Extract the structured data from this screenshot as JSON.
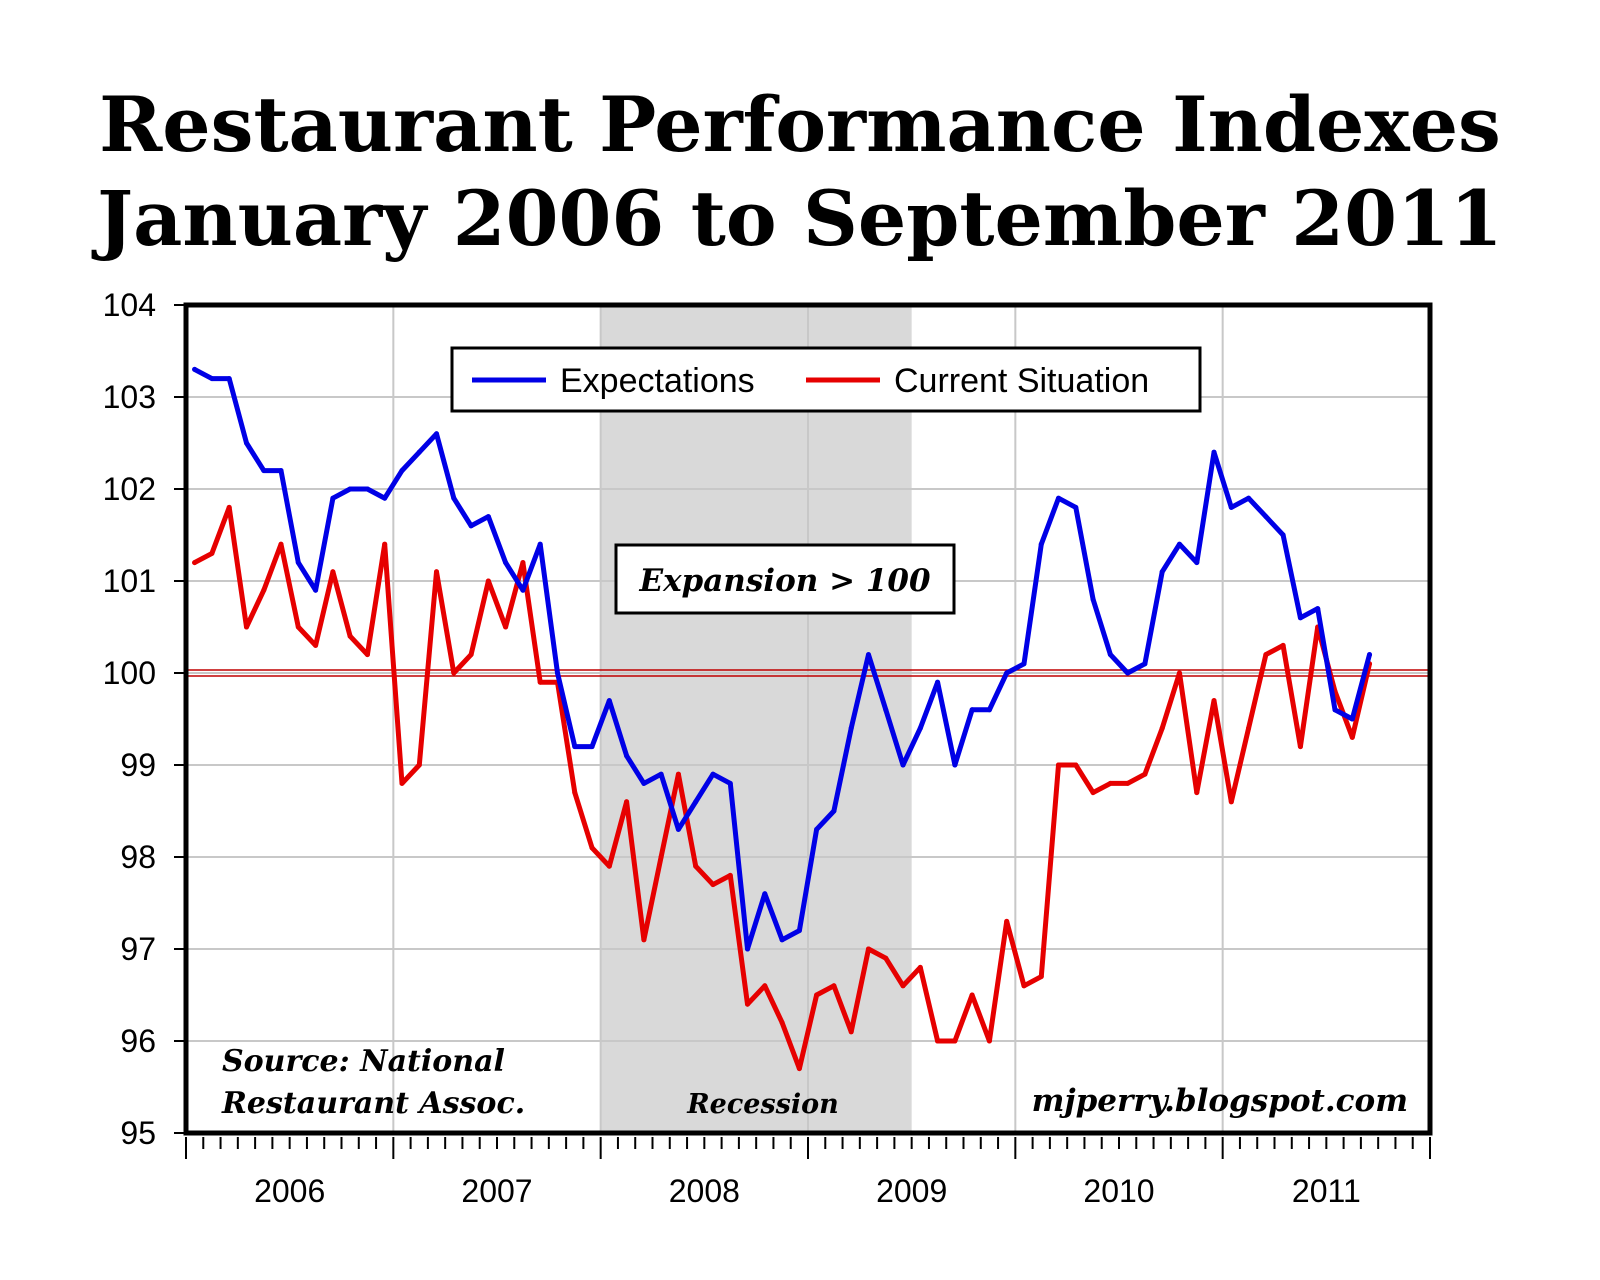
{
  "title": "Restaurant Performance Indexes",
  "subtitle": "January 2006 to September 2011",
  "colors": {
    "expectations": "#0000e6",
    "current": "#e60000",
    "recession": "#d9d9d9",
    "grid": "#c8c8c8"
  },
  "annotations": {
    "expansion": "Expansion > 100",
    "recession": "Recession",
    "source_line1": "Source: National",
    "source_line2": "Restaurant Assoc.",
    "site": "mjperry.blogspot.com"
  },
  "chart_data": {
    "type": "line",
    "title": "Restaurant Performance Indexes",
    "subtitle": "January 2006 to September 2011",
    "x_start": "2006-01",
    "x_end": "2011-09",
    "x_ticks": [
      "2006",
      "2007",
      "2008",
      "2009",
      "2010",
      "2011"
    ],
    "ylim": [
      95,
      104
    ],
    "y_ticks": [
      "95",
      "96",
      "97",
      "98",
      "99",
      "100",
      "101",
      "102",
      "103",
      "104"
    ],
    "grid": true,
    "legend_position": "top",
    "reference_line": 100,
    "recession_shading": [
      "2008-01",
      "2009-06"
    ],
    "series": [
      {
        "name": "Expectations",
        "color": "#0000e6",
        "values": [
          103.3,
          103.2,
          103.2,
          102.5,
          102.2,
          102.2,
          101.2,
          100.9,
          101.9,
          102.0,
          102.0,
          101.9,
          102.2,
          102.4,
          102.6,
          101.9,
          101.6,
          101.7,
          101.2,
          100.9,
          101.4,
          100.0,
          99.2,
          99.2,
          99.7,
          99.1,
          98.8,
          98.9,
          98.3,
          98.6,
          98.9,
          98.8,
          97.0,
          97.6,
          97.1,
          97.2,
          98.3,
          98.5,
          99.4,
          100.2,
          99.6,
          99.0,
          99.4,
          99.9,
          99.0,
          99.6,
          99.6,
          100.0,
          100.1,
          101.4,
          101.9,
          101.8,
          100.8,
          100.2,
          100.0,
          100.1,
          101.1,
          101.4,
          101.2,
          102.4,
          101.8,
          101.9,
          101.7,
          101.5,
          100.6,
          100.7,
          99.6,
          99.5,
          100.2
        ]
      },
      {
        "name": "Current Situation",
        "color": "#e60000",
        "values": [
          101.2,
          101.3,
          101.8,
          100.5,
          100.9,
          101.4,
          100.5,
          100.3,
          101.1,
          100.4,
          100.2,
          101.4,
          98.8,
          99.0,
          101.1,
          100.0,
          100.2,
          101.0,
          100.5,
          101.2,
          99.9,
          99.9,
          98.7,
          98.1,
          97.9,
          98.6,
          97.1,
          98.0,
          98.9,
          97.9,
          97.7,
          97.8,
          96.4,
          96.6,
          96.2,
          95.7,
          96.5,
          96.6,
          96.1,
          97.0,
          96.9,
          96.6,
          96.8,
          96.0,
          96.0,
          96.5,
          96.0,
          97.3,
          96.6,
          96.7,
          99.0,
          99.0,
          98.7,
          98.8,
          98.8,
          98.9,
          99.4,
          100.0,
          98.7,
          99.7,
          98.6,
          99.4,
          100.2,
          100.3,
          99.2,
          100.5,
          99.8,
          99.3,
          100.1
        ]
      }
    ]
  }
}
